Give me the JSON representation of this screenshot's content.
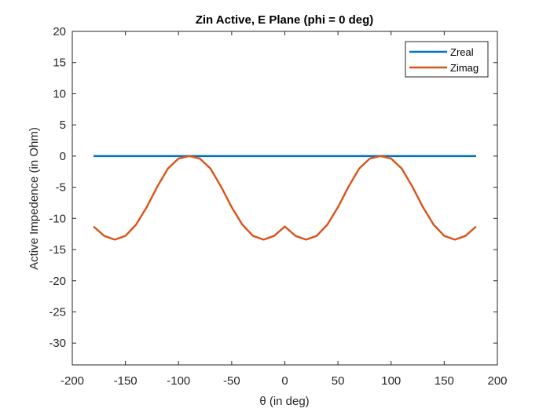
{
  "chart_data": {
    "type": "line",
    "title": "Zin Active, E Plane (phi = 0 deg)",
    "xlabel": "θ (in deg)",
    "ylabel": "Active Impedence (in Ohm)",
    "xlim": [
      -200,
      200
    ],
    "ylim": [
      -33.5,
      20
    ],
    "xticks": [
      -200,
      -150,
      -100,
      -50,
      0,
      50,
      100,
      150,
      200
    ],
    "yticks": [
      20,
      15,
      10,
      5,
      0,
      -5,
      -10,
      -15,
      -20,
      -25,
      -30
    ],
    "grid": false,
    "legend_position": "top-right",
    "x": [
      -180,
      -170,
      -160,
      -150,
      -140,
      -130,
      -120,
      -110,
      -100,
      -90,
      -80,
      -70,
      -60,
      -50,
      -40,
      -30,
      -20,
      -10,
      0,
      10,
      20,
      30,
      40,
      50,
      60,
      70,
      80,
      90,
      100,
      110,
      120,
      130,
      140,
      150,
      160,
      170,
      180
    ],
    "series": [
      {
        "name": "Zreal",
        "color": "#0072BD",
        "values": [
          0,
          0,
          0,
          0,
          0,
          0,
          0,
          0,
          0,
          0,
          0,
          0,
          0,
          0,
          0,
          0,
          0,
          0,
          0,
          0,
          0,
          0,
          0,
          0,
          0,
          0,
          0,
          0,
          0,
          0,
          0,
          0,
          0,
          0,
          0,
          0,
          0
        ]
      },
      {
        "name": "Zimag",
        "color": "#D95319",
        "values": [
          -11.3,
          -12.8,
          -13.4,
          -12.8,
          -11.0,
          -8.2,
          -4.9,
          -2.0,
          -0.4,
          0,
          -0.4,
          -2.0,
          -4.9,
          -8.2,
          -11.0,
          -12.8,
          -13.4,
          -12.8,
          -11.3,
          -12.8,
          -13.4,
          -12.8,
          -11.0,
          -8.2,
          -4.9,
          -2.0,
          -0.4,
          0,
          -0.4,
          -2.0,
          -4.9,
          -8.2,
          -11.0,
          -12.8,
          -13.4,
          -12.8,
          -11.3
        ]
      }
    ]
  }
}
